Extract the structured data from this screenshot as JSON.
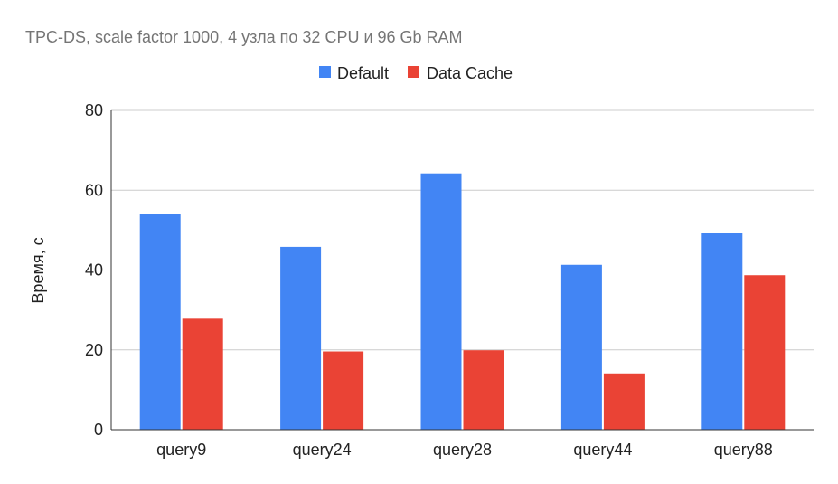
{
  "chart_data": {
    "type": "bar",
    "title": "TPC-DS, scale factor 1000, 4 узла по 32 CPU и 96 Gb RAM",
    "xlabel": "",
    "ylabel": "Время, с",
    "ylim": [
      0,
      80
    ],
    "yticks": [
      "0",
      "20",
      "40",
      "60",
      "80"
    ],
    "categories": [
      "query9",
      "query24",
      "query28",
      "query44",
      "query88"
    ],
    "series": [
      {
        "name": "Default",
        "color": "#4285F4",
        "values": [
          54,
          45.8,
          64.2,
          41.3,
          49.2
        ]
      },
      {
        "name": "Data Cache",
        "color": "#EA4335",
        "values": [
          27.8,
          19.6,
          19.9,
          14.1,
          38.7
        ]
      }
    ],
    "grid": true,
    "legend_position": "top"
  }
}
